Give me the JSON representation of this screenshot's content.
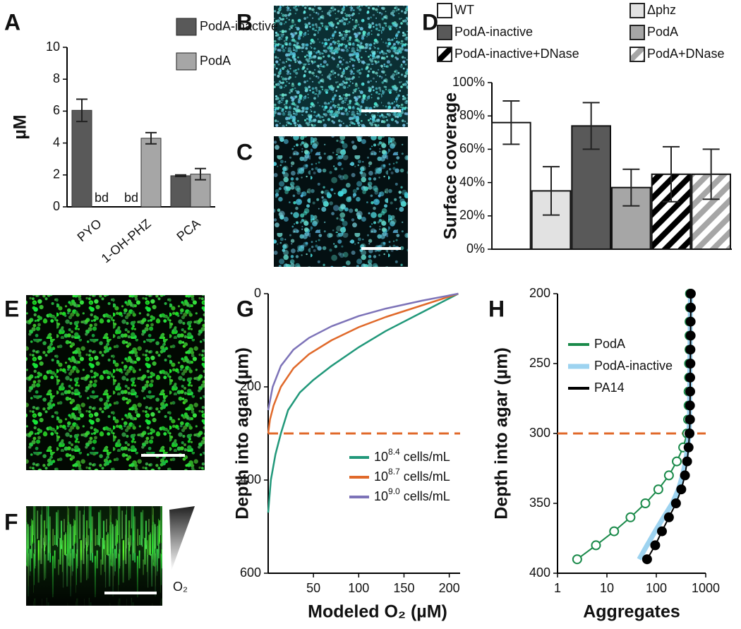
{
  "panel_labels": [
    "A",
    "B",
    "C",
    "D",
    "E",
    "F",
    "G",
    "H"
  ],
  "panel_f": {
    "gradient_label": "O₂"
  },
  "chart_data": [
    {
      "type": "bar",
      "ylabel": "µM",
      "categories": [
        "PYO",
        "1-OH-PHZ",
        "PCA"
      ],
      "ylim": [
        0,
        10
      ],
      "yticks": [
        0,
        2,
        4,
        6,
        8,
        10
      ],
      "legend": "upper right",
      "series": [
        {
          "name": "PodA-inactive",
          "color": "#595959",
          "values": [
            6.05,
            null,
            1.95
          ],
          "errors": [
            0.7,
            null,
            0.05
          ],
          "value_labels": [
            null,
            "bd",
            null
          ]
        },
        {
          "name": "PodA",
          "color": "#a6a6a6",
          "values": [
            null,
            4.3,
            2.05
          ],
          "errors": [
            null,
            0.35,
            0.35
          ],
          "value_labels": [
            "bd",
            null,
            null
          ]
        }
      ]
    },
    {
      "type": "bar",
      "ylabel": "Surface coverage",
      "ylim": [
        0,
        100
      ],
      "legend": "above",
      "yticks": [
        {
          "value": 0,
          "label": "0%"
        },
        {
          "value": 20,
          "label": "20%"
        },
        {
          "value": 40,
          "label": "40%"
        },
        {
          "value": 60,
          "label": "60%"
        },
        {
          "value": 80,
          "label": "80%"
        },
        {
          "value": 100,
          "label": "100%"
        }
      ],
      "series": [
        {
          "name": "WT",
          "color": "#ffffff",
          "values": [
            76
          ],
          "errors": [
            13
          ]
        },
        {
          "name": "Δphz",
          "color": "#e2e2e2",
          "values": [
            35
          ],
          "errors": [
            14.5
          ]
        },
        {
          "name": "PodA-inactive",
          "color": "#595959",
          "values": [
            74
          ],
          "errors": [
            14
          ]
        },
        {
          "name": "PodA",
          "color": "#a6a6a6",
          "values": [
            37
          ],
          "errors": [
            11
          ]
        },
        {
          "name": "PodA-inactive+DNase",
          "color": "#000000",
          "pattern": "hatch",
          "values": [
            45
          ],
          "errors": [
            16.5
          ]
        },
        {
          "name": "PodA+DNase",
          "color": "#a6a6a6",
          "pattern": "hatch",
          "values": [
            45
          ],
          "errors": [
            15
          ]
        }
      ]
    },
    {
      "type": "line",
      "ylabel": "Depth into agar (µm)",
      "xlabel": "Modeled O₂ (µM)",
      "xlim": [
        0,
        212
      ],
      "xticks": [
        50,
        100,
        150,
        200
      ],
      "ylim": [
        0,
        600
      ],
      "yticks": [
        0,
        200,
        400,
        600
      ],
      "y_inverted": true,
      "hline": 300,
      "hline_color": "#e0692a",
      "legend": "lower right",
      "series": [
        {
          "name": {
            "base": "10",
            "exp": "8.4",
            "unit": "cells/mL"
          },
          "color": "#21987a",
          "x": [
            210,
            170,
            130,
            100,
            70,
            50,
            35,
            22,
            14,
            8,
            3,
            0
          ],
          "values": [
            0,
            40,
            80,
            115,
            155,
            185,
            212,
            250,
            300,
            345,
            400,
            470
          ]
        },
        {
          "name": {
            "base": "10",
            "exp": "8.7",
            "unit": "cells/mL"
          },
          "color": "#e0692a",
          "x": [
            210,
            170,
            130,
            100,
            70,
            45,
            28,
            14,
            6,
            2,
            0
          ],
          "values": [
            0,
            25,
            50,
            72,
            100,
            130,
            160,
            200,
            240,
            270,
            300
          ]
        },
        {
          "name": {
            "base": "10",
            "exp": "9.0",
            "unit": "cells/mL"
          },
          "color": "#7d73b8",
          "x": [
            210,
            170,
            130,
            100,
            70,
            45,
            28,
            14,
            5,
            0
          ],
          "values": [
            0,
            15,
            32,
            48,
            70,
            95,
            120,
            155,
            200,
            250
          ]
        }
      ]
    },
    {
      "type": "scatter",
      "ylabel": "Depth into agar (µm)",
      "xlabel": "Aggregates",
      "xscale": "log",
      "xlim": [
        1,
        1000
      ],
      "xticks": [
        1,
        10,
        100,
        1000
      ],
      "ylim": [
        200,
        400
      ],
      "yticks": [
        200,
        250,
        300,
        350,
        400
      ],
      "y_inverted": true,
      "hline": 300,
      "hline_color": "#e0692a",
      "legend": "upper left",
      "series": [
        {
          "name": "PodA",
          "color": "#1a8a4a",
          "marker": "open",
          "line_width": 2,
          "x": [
            480,
            480,
            470,
            470,
            470,
            460,
            460,
            450,
            450,
            440,
            420,
            350,
            260,
            180,
            110,
            60,
            30,
            14,
            6,
            2.5
          ],
          "values": [
            200,
            210,
            220,
            230,
            240,
            250,
            260,
            270,
            280,
            290,
            300,
            310,
            320,
            330,
            340,
            350,
            360,
            370,
            380,
            390
          ]
        },
        {
          "name": "PodA-inactive",
          "color": "#9dd3f0",
          "marker": "none",
          "line_width": 7,
          "x": [
            490,
            490,
            485,
            485,
            480,
            480,
            475,
            475,
            470,
            470,
            460,
            430,
            390,
            340,
            280,
            210,
            140,
            95,
            65,
            45
          ],
          "values": [
            200,
            210,
            220,
            230,
            240,
            250,
            260,
            270,
            280,
            290,
            300,
            310,
            320,
            330,
            340,
            350,
            360,
            370,
            380,
            390
          ]
        },
        {
          "name": "PA14",
          "color": "#000000",
          "marker": "filled",
          "line_width": 2,
          "x": [
            500,
            500,
            495,
            495,
            490,
            490,
            485,
            485,
            480,
            480,
            470,
            450,
            420,
            380,
            320,
            250,
            180,
            130,
            95,
            65
          ],
          "values": [
            200,
            210,
            220,
            230,
            240,
            250,
            260,
            270,
            280,
            290,
            300,
            310,
            320,
            330,
            340,
            350,
            360,
            370,
            380,
            390
          ]
        }
      ]
    }
  ]
}
